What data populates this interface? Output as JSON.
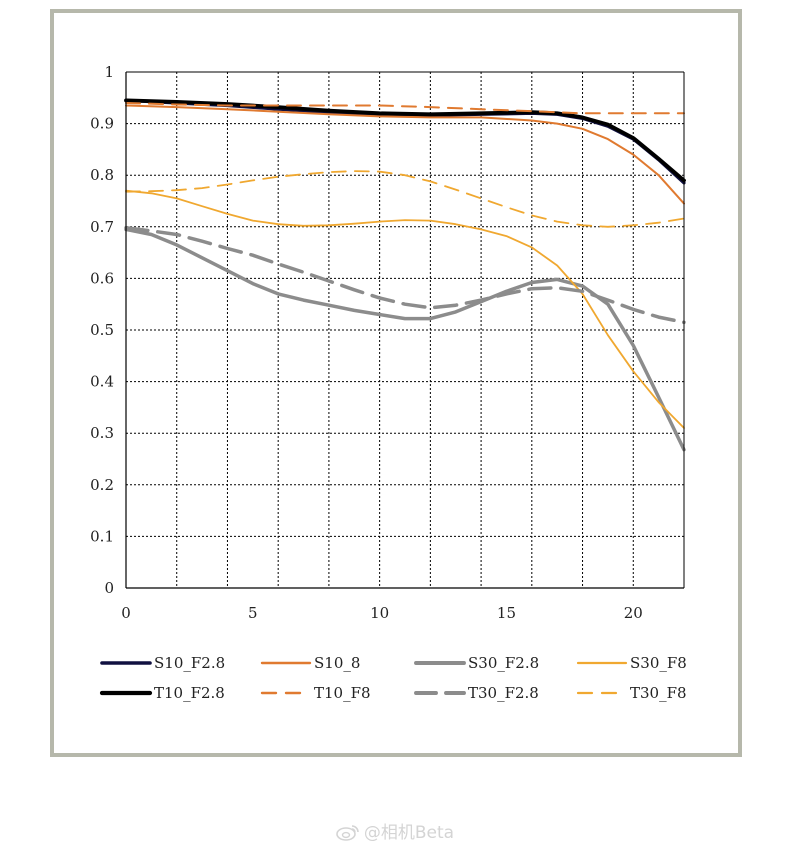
{
  "chart_data": {
    "type": "line",
    "title": "",
    "xlabel": "",
    "ylabel": "",
    "xlim": [
      0,
      22
    ],
    "ylim": [
      0,
      1
    ],
    "xticks": [
      0,
      5,
      10,
      15,
      20
    ],
    "yticks": [
      0,
      0.1,
      0.2,
      0.3,
      0.4,
      0.5,
      0.6,
      0.7,
      0.8,
      0.9,
      1
    ],
    "ytick_labels": [
      "0",
      "0.1",
      "0.2",
      "0.3",
      "0.4",
      "0.5",
      "0.6",
      "0.7",
      "0.8",
      "0.9",
      "1"
    ],
    "grid": true,
    "legend_position": "bottom",
    "series": [
      {
        "name": "S10_F2.8",
        "color": "#101040",
        "style": "solid",
        "width": 3.2,
        "x": [
          0,
          2,
          4,
          6,
          8,
          10,
          12,
          14,
          16,
          17,
          18,
          19,
          20,
          21,
          22
        ],
        "y": [
          0.945,
          0.94,
          0.935,
          0.928,
          0.922,
          0.918,
          0.916,
          0.918,
          0.92,
          0.918,
          0.91,
          0.895,
          0.87,
          0.83,
          0.785
        ]
      },
      {
        "name": "S10_8",
        "color": "#e07a30",
        "style": "solid",
        "width": 2,
        "x": [
          0,
          2,
          4,
          6,
          8,
          10,
          12,
          14,
          16,
          17,
          18,
          19,
          20,
          21,
          22
        ],
        "y": [
          0.935,
          0.932,
          0.928,
          0.923,
          0.918,
          0.914,
          0.912,
          0.912,
          0.906,
          0.9,
          0.89,
          0.87,
          0.84,
          0.8,
          0.745
        ]
      },
      {
        "name": "S30_F2.8",
        "color": "#8c8c8c",
        "style": "solid",
        "width": 3.5,
        "x": [
          0,
          1,
          2,
          3,
          4,
          5,
          6,
          7,
          8,
          9,
          10,
          11,
          12,
          13,
          14,
          15,
          16,
          17,
          18,
          19,
          20,
          21,
          22
        ],
        "y": [
          0.695,
          0.685,
          0.665,
          0.64,
          0.615,
          0.59,
          0.57,
          0.558,
          0.548,
          0.538,
          0.53,
          0.522,
          0.522,
          0.535,
          0.555,
          0.575,
          0.592,
          0.598,
          0.585,
          0.55,
          0.47,
          0.37,
          0.268
        ]
      },
      {
        "name": "S30_F8",
        "color": "#f0a830",
        "style": "solid",
        "width": 1.8,
        "x": [
          0,
          1,
          2,
          3,
          4,
          5,
          6,
          7,
          8,
          9,
          10,
          11,
          12,
          13,
          14,
          15,
          16,
          17,
          18,
          19,
          20,
          21,
          22
        ],
        "y": [
          0.77,
          0.765,
          0.755,
          0.74,
          0.725,
          0.712,
          0.705,
          0.702,
          0.703,
          0.706,
          0.71,
          0.713,
          0.712,
          0.705,
          0.695,
          0.682,
          0.66,
          0.625,
          0.57,
          0.49,
          0.42,
          0.36,
          0.31
        ]
      },
      {
        "name": "T10_F2.8",
        "color": "#000000",
        "style": "solid",
        "width": 3.8,
        "x": [
          0,
          2,
          4,
          6,
          8,
          10,
          12,
          14,
          16,
          17,
          18,
          19,
          20,
          21,
          22
        ],
        "y": [
          0.945,
          0.942,
          0.938,
          0.932,
          0.925,
          0.92,
          0.918,
          0.92,
          0.922,
          0.92,
          0.912,
          0.898,
          0.872,
          0.832,
          0.79
        ]
      },
      {
        "name": "T10_F8",
        "color": "#e07a30",
        "style": "dashed",
        "width": 2,
        "x": [
          0,
          2,
          4,
          6,
          8,
          10,
          12,
          14,
          16,
          18,
          20,
          22
        ],
        "y": [
          0.94,
          0.937,
          0.935,
          0.935,
          0.935,
          0.935,
          0.932,
          0.928,
          0.924,
          0.92,
          0.92,
          0.92
        ]
      },
      {
        "name": "T30_F2.8",
        "color": "#8c8c8c",
        "style": "dashed",
        "width": 3.5,
        "x": [
          0,
          1,
          2,
          3,
          4,
          5,
          6,
          7,
          8,
          9,
          10,
          11,
          12,
          13,
          14,
          15,
          16,
          17,
          18,
          19,
          20,
          21,
          22
        ],
        "y": [
          0.698,
          0.692,
          0.685,
          0.672,
          0.658,
          0.645,
          0.628,
          0.612,
          0.595,
          0.578,
          0.562,
          0.55,
          0.543,
          0.548,
          0.558,
          0.57,
          0.58,
          0.582,
          0.575,
          0.558,
          0.54,
          0.525,
          0.515
        ]
      },
      {
        "name": "T30_F8",
        "color": "#f0a830",
        "style": "dashed",
        "width": 1.8,
        "x": [
          0,
          1,
          2,
          3,
          4,
          5,
          6,
          7,
          8,
          9,
          10,
          11,
          12,
          13,
          14,
          15,
          16,
          17,
          18,
          19,
          20,
          21,
          22
        ],
        "y": [
          0.768,
          0.769,
          0.771,
          0.775,
          0.782,
          0.79,
          0.797,
          0.802,
          0.806,
          0.808,
          0.807,
          0.8,
          0.788,
          0.772,
          0.755,
          0.738,
          0.722,
          0.71,
          0.703,
          0.7,
          0.703,
          0.708,
          0.716
        ]
      }
    ]
  },
  "watermark": {
    "text": "@相机Beta",
    "icon": "weibo-icon"
  }
}
